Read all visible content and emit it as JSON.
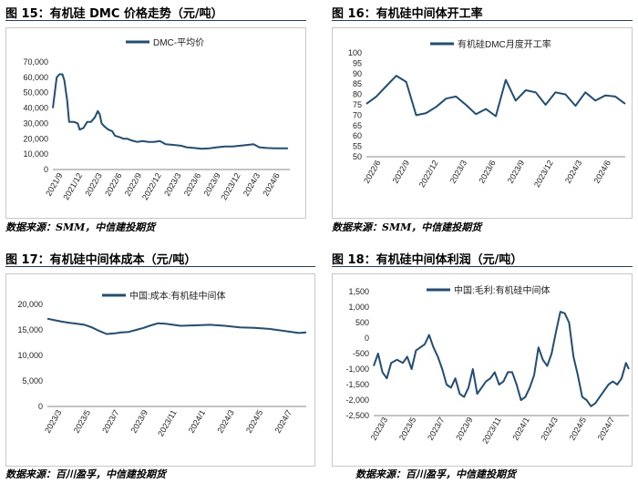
{
  "colors": {
    "line": "#1f4e79",
    "box": "#c8c8c8",
    "rule": "#1f3f6e"
  },
  "panels": [
    {
      "title": "图 15：有机硅 DMC 价格走势（元/吨）",
      "source": "数据来源：SMM，中信建投期货"
    },
    {
      "title": "图 16：有机硅中间体开工率",
      "source": "数据来源：SMM，中信建投期货"
    },
    {
      "title": "图 17：有机硅中间体成本（元/吨）",
      "source": "数据来源：百川盈孚，中信建投期货"
    },
    {
      "title": "图 18：有机硅中间体利润（元/吨）",
      "source": "数据来源：百川盈孚，中信建投期货"
    }
  ],
  "chart_data": [
    {
      "type": "line",
      "legend": "DMC-平均价",
      "x_ticks": [
        "2021/9",
        "2021/12",
        "2022/3",
        "2022/6",
        "2022/9",
        "2022/12",
        "2023/3",
        "2023/6",
        "2023/9",
        "2023/12",
        "2024/3",
        "2024/6"
      ],
      "y_ticks": [
        0,
        10000,
        20000,
        30000,
        40000,
        50000,
        60000,
        70000
      ],
      "y_tick_labels": [
        "0",
        "10,000",
        "20,000",
        "30,000",
        "40,000",
        "50,000",
        "60,000",
        "70,000"
      ],
      "ylim": [
        0,
        70000
      ],
      "xlim": [
        0,
        12.4
      ],
      "series": [
        {
          "values": [
            [
              0,
              40000
            ],
            [
              0.1,
              50000
            ],
            [
              0.2,
              60000
            ],
            [
              0.35,
              62000
            ],
            [
              0.5,
              62000
            ],
            [
              0.6,
              58000
            ],
            [
              0.75,
              45000
            ],
            [
              0.85,
              31000
            ],
            [
              1.1,
              31000
            ],
            [
              1.3,
              30000
            ],
            [
              1.4,
              26000
            ],
            [
              1.6,
              27000
            ],
            [
              1.8,
              31000
            ],
            [
              2.0,
              31000
            ],
            [
              2.2,
              34000
            ],
            [
              2.35,
              38000
            ],
            [
              2.45,
              36000
            ],
            [
              2.55,
              30000
            ],
            [
              2.7,
              28000
            ],
            [
              2.9,
              26000
            ],
            [
              3.1,
              25000
            ],
            [
              3.25,
              22000
            ],
            [
              3.5,
              21000
            ],
            [
              3.7,
              20000
            ],
            [
              3.9,
              20000
            ],
            [
              4.1,
              19000
            ],
            [
              4.4,
              18000
            ],
            [
              4.7,
              18500
            ],
            [
              5.0,
              18000
            ],
            [
              5.3,
              18000
            ],
            [
              5.6,
              18500
            ],
            [
              5.9,
              16500
            ],
            [
              6.3,
              16000
            ],
            [
              6.7,
              15500
            ],
            [
              7.0,
              14500
            ],
            [
              7.4,
              14000
            ],
            [
              7.8,
              13500
            ],
            [
              8.2,
              13800
            ],
            [
              8.6,
              14500
            ],
            [
              9.0,
              15000
            ],
            [
              9.4,
              15000
            ],
            [
              9.8,
              15500
            ],
            [
              10.2,
              16000
            ],
            [
              10.5,
              16500
            ],
            [
              10.8,
              14500
            ],
            [
              11.2,
              14000
            ],
            [
              11.6,
              13800
            ],
            [
              12.0,
              13800
            ],
            [
              12.3,
              13800
            ]
          ]
        }
      ]
    },
    {
      "type": "line",
      "legend": "有机硅DMC月度开工率",
      "x_ticks": [
        "2022/6",
        "2022/9",
        "2022/12",
        "2023/3",
        "2023/6",
        "2023/9",
        "2023/12",
        "2024/3",
        "2024/6"
      ],
      "y_ticks": [
        50,
        55,
        60,
        65,
        70,
        75,
        80,
        85,
        90,
        95,
        100
      ],
      "ylim": [
        50,
        100
      ],
      "xlim": [
        0,
        26
      ],
      "series": [
        {
          "values": [
            [
              0,
              75.5
            ],
            [
              1,
              79
            ],
            [
              2,
              84
            ],
            [
              3,
              89
            ],
            [
              4,
              86
            ],
            [
              5,
              70
            ],
            [
              6,
              71
            ],
            [
              7,
              74
            ],
            [
              8,
              78
            ],
            [
              9,
              79
            ],
            [
              10,
              75
            ],
            [
              11,
              70.5
            ],
            [
              12,
              73
            ],
            [
              13,
              69.5
            ],
            [
              14,
              87
            ],
            [
              15,
              77
            ],
            [
              16,
              82
            ],
            [
              17,
              81
            ],
            [
              18,
              75
            ],
            [
              19,
              81
            ],
            [
              20,
              80
            ],
            [
              21,
              74.5
            ],
            [
              22,
              81
            ],
            [
              23,
              77
            ],
            [
              24,
              79.5
            ],
            [
              25,
              79
            ],
            [
              26,
              75.5
            ]
          ]
        }
      ]
    },
    {
      "type": "line",
      "legend": "中国:成本:有机硅中间体",
      "x_ticks": [
        "2023/3",
        "2023/5",
        "2023/7",
        "2023/9",
        "2023/11",
        "2024/1",
        "2024/3",
        "2024/5",
        "2024/7"
      ],
      "y_ticks": [
        0,
        5000,
        10000,
        15000,
        20000
      ],
      "y_tick_labels": [
        "0",
        "5,000",
        "10,000",
        "15,000",
        "20,000"
      ],
      "ylim": [
        0,
        20000
      ],
      "xlim": [
        0,
        17.5
      ],
      "series": [
        {
          "values": [
            [
              0,
              17200
            ],
            [
              0.5,
              16900
            ],
            [
              1,
              16600
            ],
            [
              1.5,
              16400
            ],
            [
              2,
              16200
            ],
            [
              2.5,
              16000
            ],
            [
              3,
              15500
            ],
            [
              3.5,
              14800
            ],
            [
              4,
              14200
            ],
            [
              4.5,
              14300
            ],
            [
              5,
              14500
            ],
            [
              5.5,
              14600
            ],
            [
              6,
              15000
            ],
            [
              6.5,
              15400
            ],
            [
              7,
              15900
            ],
            [
              7.5,
              16300
            ],
            [
              8,
              16200
            ],
            [
              8.5,
              16000
            ],
            [
              9,
              15800
            ],
            [
              10,
              15900
            ],
            [
              11,
              16000
            ],
            [
              12,
              15800
            ],
            [
              13,
              15500
            ],
            [
              14,
              15400
            ],
            [
              15,
              15200
            ],
            [
              16,
              14800
            ],
            [
              17,
              14400
            ],
            [
              17.5,
              14500
            ]
          ]
        }
      ]
    },
    {
      "type": "line",
      "legend": "中国:毛利:有机硅中间体",
      "x_ticks": [
        "2023/3",
        "2023/5",
        "2023/7",
        "2023/9",
        "2023/11",
        "2024/1",
        "2024/3",
        "2024/5",
        "2024/7"
      ],
      "y_ticks": [
        -2500,
        -2000,
        -1500,
        -1000,
        -500,
        0,
        500,
        1000,
        1500
      ],
      "y_tick_labels": [
        "-2,500",
        "-2,000",
        "-1,500",
        "-1,000",
        "-500",
        "0",
        "500",
        "1,000",
        "1,500"
      ],
      "ylim": [
        -2500,
        1500
      ],
      "xlim": [
        0,
        17.5
      ],
      "series": [
        {
          "values": [
            [
              0,
              -900
            ],
            [
              0.3,
              -500
            ],
            [
              0.6,
              -1100
            ],
            [
              0.9,
              -1300
            ],
            [
              1.2,
              -800
            ],
            [
              1.6,
              -700
            ],
            [
              2.0,
              -800
            ],
            [
              2.3,
              -600
            ],
            [
              2.6,
              -1000
            ],
            [
              2.9,
              -400
            ],
            [
              3.2,
              -300
            ],
            [
              3.5,
              -200
            ],
            [
              3.8,
              100
            ],
            [
              4.1,
              -300
            ],
            [
              4.4,
              -600
            ],
            [
              4.7,
              -1000
            ],
            [
              5.0,
              -1500
            ],
            [
              5.3,
              -1600
            ],
            [
              5.6,
              -1300
            ],
            [
              5.9,
              -1800
            ],
            [
              6.2,
              -1900
            ],
            [
              6.5,
              -1600
            ],
            [
              6.8,
              -1000
            ],
            [
              7.1,
              -1800
            ],
            [
              7.4,
              -1600
            ],
            [
              7.7,
              -1400
            ],
            [
              8.0,
              -1300
            ],
            [
              8.3,
              -1100
            ],
            [
              8.6,
              -1500
            ],
            [
              8.9,
              -1400
            ],
            [
              9.2,
              -1100
            ],
            [
              9.5,
              -1100
            ],
            [
              9.8,
              -1500
            ],
            [
              10.1,
              -2000
            ],
            [
              10.4,
              -1900
            ],
            [
              10.7,
              -1600
            ],
            [
              11.0,
              -1200
            ],
            [
              11.3,
              -300
            ],
            [
              11.6,
              -700
            ],
            [
              11.9,
              -900
            ],
            [
              12.2,
              -500
            ],
            [
              12.5,
              200
            ],
            [
              12.8,
              850
            ],
            [
              13.1,
              800
            ],
            [
              13.4,
              500
            ],
            [
              13.7,
              -600
            ],
            [
              14.0,
              -1200
            ],
            [
              14.3,
              -1900
            ],
            [
              14.6,
              -2000
            ],
            [
              14.9,
              -2200
            ],
            [
              15.2,
              -2100
            ],
            [
              15.5,
              -1900
            ],
            [
              15.8,
              -1700
            ],
            [
              16.1,
              -1500
            ],
            [
              16.4,
              -1400
            ],
            [
              16.7,
              -1500
            ],
            [
              17.0,
              -1300
            ],
            [
              17.3,
              -800
            ],
            [
              17.5,
              -1000
            ]
          ]
        }
      ]
    }
  ]
}
